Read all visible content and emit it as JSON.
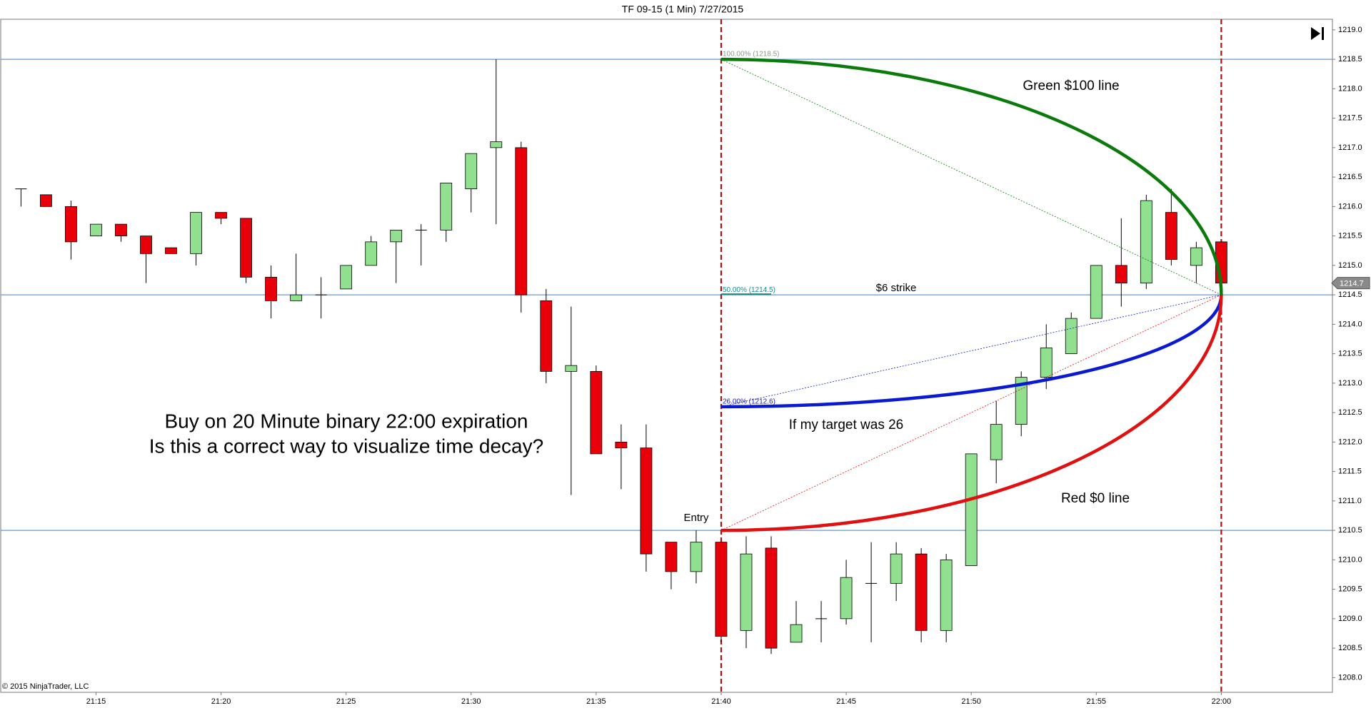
{
  "chart_data": {
    "type": "candlestick",
    "title": "TF 09-15 (1 Min)  7/27/2015",
    "copyright": "© 2015 NinjaTrader, LLC",
    "categories": [
      null,
      null,
      null,
      "21:15",
      null,
      null,
      null,
      null,
      "21:20",
      null,
      null,
      null,
      null,
      "21:25",
      null,
      null,
      null,
      null,
      "21:30",
      null,
      null,
      null,
      null,
      "21:35",
      null,
      null,
      null,
      null,
      "21:40",
      null,
      null,
      null,
      null,
      "21:45",
      null,
      null,
      null,
      null,
      "21:50",
      null,
      null,
      null,
      null,
      "21:55",
      null,
      null,
      null,
      null,
      "22:00"
    ],
    "open": [
      1216.3,
      1216.2,
      1216.0,
      1215.5,
      1215.7,
      1215.5,
      1215.3,
      1215.2,
      1215.9,
      1215.8,
      1214.8,
      1214.4,
      1214.5,
      1214.6,
      1215.0,
      1215.4,
      1215.6,
      1215.6,
      1216.3,
      1217.0,
      1217.0,
      1214.4,
      1213.2,
      1213.2,
      1212.0,
      1211.9,
      1210.3,
      1209.8,
      1210.3,
      1208.8,
      1210.2,
      1208.6,
      1209.0,
      1209.0,
      1209.6,
      1209.6,
      1210.1,
      1208.8,
      1209.9,
      1211.7,
      1212.3,
      1213.1,
      1213.5,
      1214.1,
      1215.0,
      1214.7,
      1215.9,
      1215.0,
      1215.4
    ],
    "high": [
      1216.3,
      1216.2,
      1216.1,
      1215.7,
      1215.7,
      1215.5,
      1215.3,
      1215.9,
      1215.9,
      1215.8,
      1215.0,
      1215.2,
      1214.8,
      1215.0,
      1215.5,
      1215.6,
      1215.7,
      1216.4,
      1216.9,
      1218.5,
      1217.1,
      1214.6,
      1214.3,
      1213.3,
      1212.3,
      1212.3,
      1210.3,
      1210.5,
      1210.3,
      1210.4,
      1210.4,
      1209.3,
      1209.3,
      1210.0,
      1210.3,
      1210.3,
      1210.2,
      1210.1,
      1211.8,
      1212.7,
      1213.2,
      1214.0,
      1214.2,
      1215.0,
      1215.8,
      1216.2,
      1216.3,
      1215.4,
      1215.4
    ],
    "low": [
      1216.0,
      1216.0,
      1215.1,
      1215.5,
      1215.4,
      1214.7,
      1215.2,
      1215.0,
      1215.7,
      1214.7,
      1214.1,
      1214.4,
      1214.1,
      1214.6,
      1215.0,
      1214.7,
      1215.0,
      1215.4,
      1215.9,
      1215.7,
      1214.2,
      1213.0,
      1211.1,
      1211.8,
      1211.2,
      1209.8,
      1209.5,
      1209.6,
      1208.6,
      1208.5,
      1208.4,
      1208.6,
      1208.6,
      1208.9,
      1208.6,
      1209.3,
      1208.6,
      1208.6,
      1209.9,
      1211.3,
      1212.1,
      1212.9,
      1213.5,
      1214.1,
      1214.3,
      1214.6,
      1215.0,
      1214.7,
      1214.7
    ],
    "close": [
      1216.3,
      1216.0,
      1215.4,
      1215.7,
      1215.5,
      1215.2,
      1215.2,
      1215.9,
      1215.8,
      1214.8,
      1214.4,
      1214.5,
      1214.5,
      1215.0,
      1215.4,
      1215.6,
      1215.6,
      1216.4,
      1216.9,
      1217.1,
      1214.5,
      1213.2,
      1213.3,
      1211.8,
      1211.9,
      1210.1,
      1209.8,
      1210.3,
      1208.7,
      1210.1,
      1208.5,
      1208.9,
      1209.0,
      1209.7,
      1209.6,
      1210.1,
      1208.8,
      1210.0,
      1211.8,
      1212.3,
      1213.1,
      1213.6,
      1214.1,
      1215.0,
      1214.7,
      1216.1,
      1215.1,
      1215.3,
      1214.7
    ],
    "up_color": "#90e090",
    "down_color": "#e8000b",
    "ylim": [
      1207.75,
      1219.18
    ],
    "yticks": [
      {
        "value": 1208.0,
        "label": "1208.0"
      },
      1208.5,
      {
        "value": 1209.0,
        "label": "1209.0"
      },
      1209.5,
      {
        "value": 1210.0,
        "label": "1210.0"
      },
      1210.5,
      {
        "value": 1211.0,
        "label": "1211.0"
      },
      1211.5,
      {
        "value": 1212.0,
        "label": "1212.0"
      },
      1212.5,
      {
        "value": 1213.0,
        "label": "1213.0"
      },
      1213.5,
      {
        "value": 1214.0,
        "label": "1214.0"
      },
      1214.5,
      {
        "value": 1215.0,
        "label": "1215.0"
      },
      1215.5,
      {
        "value": 1216.0,
        "label": "1216.0"
      },
      1216.5,
      {
        "value": 1217.0,
        "label": "1217.0"
      },
      1217.5,
      {
        "value": 1218.0,
        "label": "1218.0"
      },
      1218.5,
      {
        "value": 1219.0,
        "label": "1219.0"
      }
    ],
    "last_price": 1214.7,
    "hlines": [
      1218.5,
      1214.5,
      1210.5
    ],
    "hline_color": "#5b9bd5",
    "vlines": [
      "21:40",
      "22:00"
    ],
    "vline_color": "#b01010",
    "curves": [
      {
        "color": "#0a7a0a",
        "from": 1218.5,
        "to": 1214.5
      },
      {
        "color": "#0a1ad0",
        "from": 1212.6,
        "to": 1214.5
      },
      {
        "color": "#e01010",
        "from": 1210.5,
        "to": 1214.5
      }
    ],
    "level_labels": [
      {
        "value": 1218.5,
        "label": "100.00% (1218.5)",
        "color": "#8a9a8a"
      },
      {
        "value": 1214.5,
        "label": "50.00% (1214.5)",
        "color": "#1a8a8a"
      },
      {
        "value": 1212.6,
        "label": "26.00% (1212.6)",
        "color": "#1a1ab0"
      }
    ],
    "annotations": [
      "Buy on 20 Minute binary 22:00 expiration",
      "Is this a correct way to visualize time decay?",
      "Green $100 line",
      "$6 strike",
      "If my target was 26",
      "Red $0 line",
      "Entry"
    ]
  }
}
